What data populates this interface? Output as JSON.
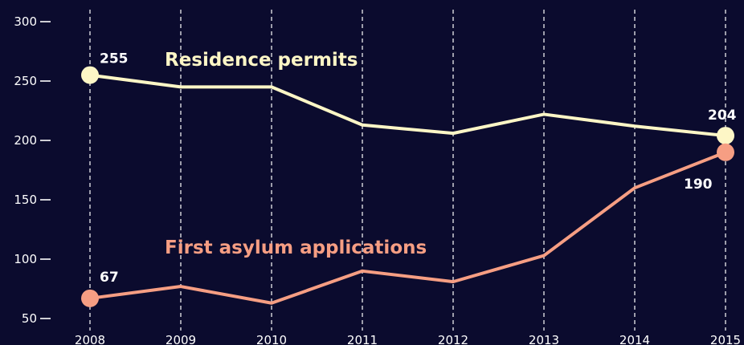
{
  "chart_data": {
    "type": "line",
    "title": "",
    "xlabel": "",
    "ylabel": "",
    "x": [
      2008,
      2009,
      2010,
      2011,
      2012,
      2013,
      2014,
      2015
    ],
    "ylim": [
      50,
      300
    ],
    "yticks": [
      50,
      100,
      150,
      200,
      250,
      300
    ],
    "grid": "vertical dashed lines at each year",
    "series": [
      {
        "name": "Residence permits",
        "color": "#fdf6c6",
        "values": [
          255,
          245,
          245,
          213,
          206,
          222,
          212,
          204
        ],
        "labels": [
          {
            "index": 0,
            "text": "255"
          },
          {
            "index": 7,
            "text": "204"
          }
        ]
      },
      {
        "name": "First asylum applications",
        "color": "#f69e83",
        "values": [
          67,
          77,
          63,
          90,
          81,
          103,
          160,
          190
        ],
        "labels": [
          {
            "index": 0,
            "text": "67"
          },
          {
            "index": 7,
            "text": "190"
          }
        ]
      }
    ]
  }
}
